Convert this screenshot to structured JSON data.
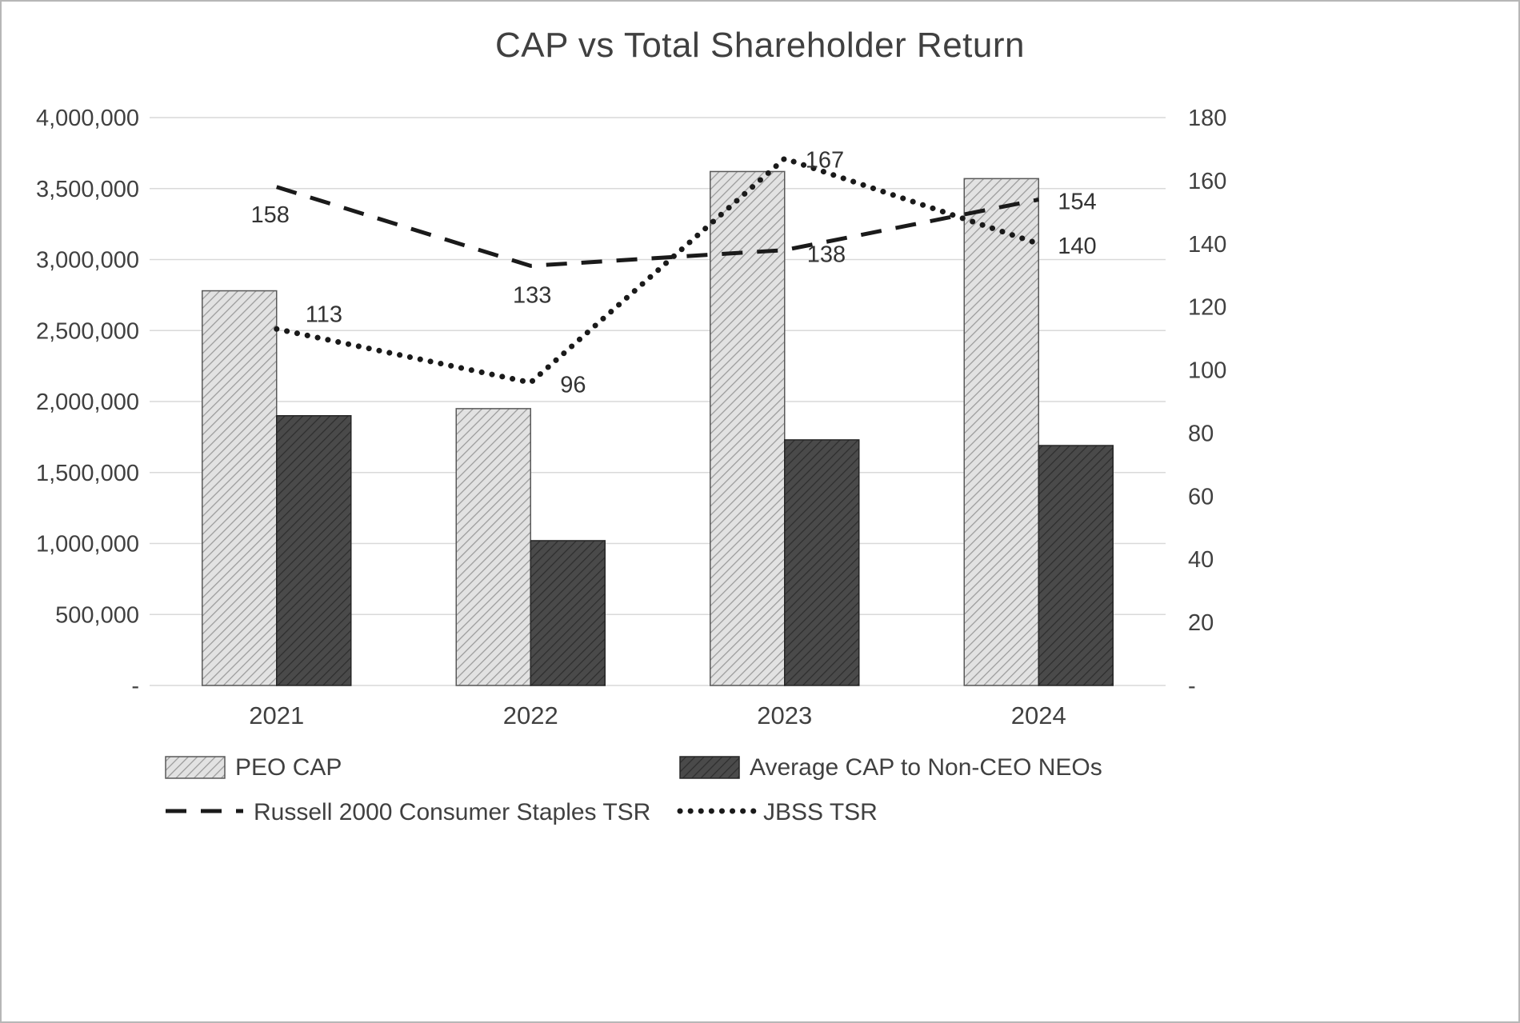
{
  "chart_data": {
    "type": "combo-bar-line",
    "title": "CAP vs Total Shareholder Return",
    "categories": [
      "2021",
      "2022",
      "2023",
      "2024"
    ],
    "bar_series": [
      {
        "name": "PEO CAP",
        "axis": "left",
        "pattern": "light-hatch",
        "values": [
          2780000,
          1950000,
          3620000,
          3570000
        ]
      },
      {
        "name": "Average CAP to Non-CEO NEOs",
        "axis": "left",
        "pattern": "dark-hatch",
        "values": [
          1900000,
          1020000,
          1730000,
          1690000
        ]
      }
    ],
    "line_series": [
      {
        "name": "Russell 2000 Consumer Staples TSR",
        "axis": "right",
        "style": "dashed",
        "values": [
          158,
          133,
          138,
          154
        ]
      },
      {
        "name": "JBSS TSR",
        "axis": "right",
        "style": "dotted",
        "values": [
          113,
          96,
          167,
          140
        ]
      }
    ],
    "left_axis": {
      "min": 0,
      "max": 4000000,
      "step": 500000,
      "tick_labels": [
        "-",
        "500,000",
        "1,000,000",
        "1,500,000",
        "2,000,000",
        "2,500,000",
        "3,000,000",
        "3,500,000",
        "4,000,000"
      ]
    },
    "right_axis": {
      "min": 0,
      "max": 180,
      "step": 20,
      "tick_labels": [
        "-",
        "20",
        "40",
        "60",
        "80",
        "100",
        "120",
        "140",
        "160",
        "180"
      ]
    },
    "grid": true,
    "legend_position": "bottom",
    "colors": {
      "text": "#404040",
      "grid": "#d9d9d9",
      "line": "#1a1a1a",
      "bar_light_base": "#e2e2e2",
      "bar_light_hatch": "#9a9a9a",
      "bar_light_stroke": "#595959",
      "bar_dark_base": "#4a4a4a",
      "bar_dark_hatch": "#2e2e2e",
      "bar_dark_stroke": "#262626",
      "border": "#b7b7b7"
    }
  }
}
